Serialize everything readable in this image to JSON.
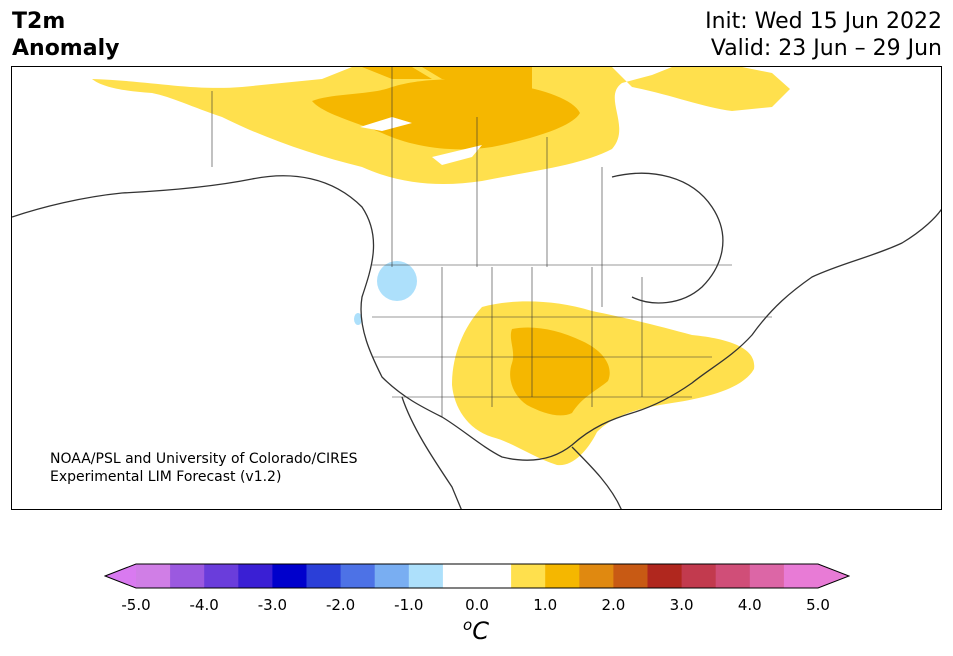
{
  "title": {
    "variable_line1": "T2m",
    "variable_line2": "Anomaly",
    "init": "Init: Wed 15 Jun 2022",
    "valid": "Valid: 23 Jun – 29 Jun"
  },
  "credit": {
    "line1": "NOAA/PSL and University of Colorado/CIRES",
    "line2": "Experimental LIM Forecast (v1.2)"
  },
  "colorbar": {
    "tick_labels": [
      "-5.0",
      "-4.0",
      "-3.0",
      "-2.0",
      "-1.0",
      "0.0",
      "1.0",
      "2.0",
      "3.0",
      "4.0",
      "5.0"
    ],
    "colors": [
      "#d07ee6",
      "#9b59e0",
      "#6a3ddb",
      "#3a1fd4",
      "#0000cc",
      "#2b3fd8",
      "#4d72e6",
      "#79aef2",
      "#ade0fb",
      "#ffffff",
      "#ffffff",
      "#ffe04d",
      "#f5b700",
      "#e08910",
      "#c85a14",
      "#b0271e",
      "#c23a4e",
      "#d04e78",
      "#dc66a6",
      "#e87bd6"
    ],
    "extend_low_color": "#d97af0",
    "extend_high_color": "#e87bd6",
    "units_base": "C",
    "units_sup": "o"
  },
  "map": {
    "region": "North America",
    "anomaly_colors": {
      "warm_light": "#ffe04d",
      "warm_medium": "#f5b700",
      "cool_light": "#ade0fb"
    }
  }
}
